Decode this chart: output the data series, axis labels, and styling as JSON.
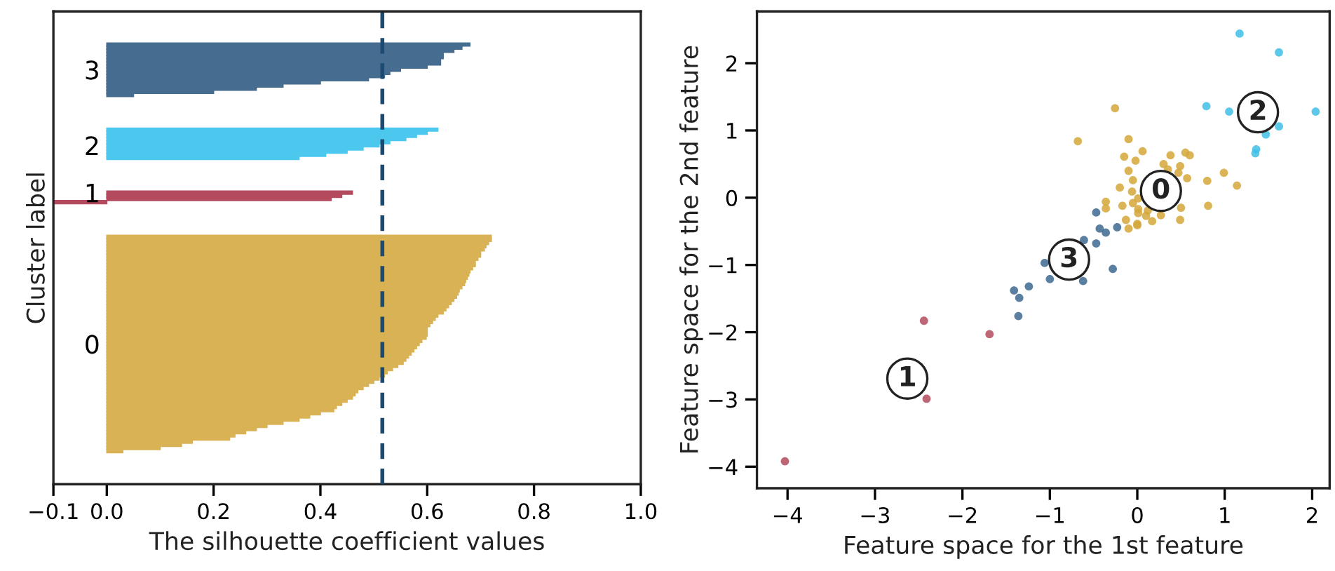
{
  "chart_data": [
    {
      "type": "bar",
      "orientation": "horizontal",
      "xlabel": "The silhouette coefficient values",
      "ylabel": "Cluster label",
      "categories": [
        null,
        null,
        null,
        null,
        null,
        null,
        null,
        null,
        null,
        null,
        null,
        null,
        null,
        null,
        null,
        null,
        null,
        null,
        "3",
        null,
        null,
        null,
        null,
        null,
        null,
        null,
        null,
        null,
        null,
        null,
        null,
        null,
        null,
        null,
        null,
        null,
        null,
        null,
        null,
        null,
        null,
        null,
        "2",
        null,
        null,
        null,
        null,
        null,
        null,
        null,
        null,
        null,
        null,
        null,
        null,
        null,
        null,
        "1",
        null,
        null,
        null,
        null,
        null,
        null,
        null,
        null,
        null,
        null,
        null,
        null,
        null,
        null,
        null,
        null,
        null,
        null,
        null,
        null,
        null,
        null,
        null,
        null,
        null,
        null,
        null,
        null,
        null,
        null,
        null,
        null,
        null,
        null,
        null,
        null,
        null,
        null,
        null,
        null,
        null,
        null,
        null,
        null,
        null,
        null,
        null,
        "0",
        null,
        null,
        null,
        null,
        null,
        null,
        null,
        null,
        null,
        null,
        null,
        null,
        null,
        null,
        null,
        null,
        null,
        null,
        null,
        null,
        null,
        null,
        null,
        null,
        null,
        null,
        null,
        null,
        null,
        null,
        null,
        null,
        null,
        null,
        null,
        null,
        null,
        null,
        null,
        null,
        null,
        null,
        null,
        null
      ],
      "values": [
        null,
        null,
        null,
        null,
        null,
        null,
        null,
        null,
        null,
        null,
        0.68,
        0.665,
        0.65,
        0.63,
        0.63,
        0.625,
        0.625,
        0.6,
        0.55,
        0.53,
        0.52,
        0.49,
        0.4,
        0.33,
        0.28,
        0.2,
        0.05,
        null,
        null,
        null,
        null,
        null,
        null,
        null,
        null,
        null,
        null,
        0.62,
        0.6,
        0.58,
        0.56,
        0.53,
        0.51,
        0.48,
        0.45,
        0.41,
        0.36,
        null,
        null,
        null,
        null,
        null,
        null,
        null,
        null,
        null,
        null,
        0.46,
        0.44,
        0.42,
        -0.1,
        null,
        null,
        null,
        null,
        null,
        null,
        null,
        null,
        null,
        null,
        0.72,
        0.72,
        0.715,
        0.71,
        0.707,
        0.7,
        0.7,
        0.695,
        0.69,
        0.69,
        0.685,
        0.68,
        0.678,
        0.675,
        0.672,
        0.67,
        0.665,
        0.66,
        0.658,
        0.655,
        0.65,
        0.645,
        0.64,
        0.635,
        0.63,
        0.62,
        0.615,
        0.61,
        0.605,
        0.6,
        0.6,
        0.6,
        0.598,
        0.59,
        0.585,
        0.58,
        0.575,
        0.57,
        0.565,
        0.56,
        0.555,
        0.545,
        0.535,
        0.525,
        0.52,
        0.51,
        0.5,
        0.49,
        0.48,
        0.47,
        0.465,
        0.46,
        0.45,
        0.44,
        0.43,
        0.425,
        0.4,
        0.38,
        0.36,
        0.33,
        0.3,
        0.28,
        0.26,
        0.24,
        0.23,
        0.16,
        0.14,
        0.1,
        0.03,
        null,
        null,
        null,
        null,
        null,
        null,
        null,
        null,
        null,
        null
      ],
      "colors": [
        null,
        null,
        null,
        null,
        null,
        null,
        null,
        null,
        null,
        null,
        "#466d90",
        "#466d90",
        "#466d90",
        "#466d90",
        "#466d90",
        "#466d90",
        "#466d90",
        "#466d90",
        "#466d90",
        "#466d90",
        "#466d90",
        "#466d90",
        "#466d90",
        "#466d90",
        "#466d90",
        "#466d90",
        "#466d90",
        null,
        null,
        null,
        null,
        null,
        null,
        null,
        null,
        null,
        null,
        "#4cc8ef",
        "#4cc8ef",
        "#4cc8ef",
        "#4cc8ef",
        "#4cc8ef",
        "#4cc8ef",
        "#4cc8ef",
        "#4cc8ef",
        "#4cc8ef",
        "#4cc8ef",
        null,
        null,
        null,
        null,
        null,
        null,
        null,
        null,
        null,
        null,
        "#b34a5e",
        "#b34a5e",
        "#b34a5e",
        "#b34a5e",
        null,
        null,
        null,
        null,
        null,
        null,
        null,
        null,
        null,
        null,
        "#d9b255",
        "#d9b255",
        "#d9b255",
        "#d9b255",
        "#d9b255",
        "#d9b255",
        "#d9b255",
        "#d9b255",
        "#d9b255",
        "#d9b255",
        "#d9b255",
        "#d9b255",
        "#d9b255",
        "#d9b255",
        "#d9b255",
        "#d9b255",
        "#d9b255",
        "#d9b255",
        "#d9b255",
        "#d9b255",
        "#d9b255",
        "#d9b255",
        "#d9b255",
        "#d9b255",
        "#d9b255",
        "#d9b255",
        "#d9b255",
        "#d9b255",
        "#d9b255",
        "#d9b255",
        "#d9b255",
        "#d9b255",
        "#d9b255",
        "#d9b255",
        "#d9b255",
        "#d9b255",
        "#d9b255",
        "#d9b255",
        "#d9b255",
        "#d9b255",
        "#d9b255",
        "#d9b255",
        "#d9b255",
        "#d9b255",
        "#d9b255",
        "#d9b255",
        "#d9b255",
        "#d9b255",
        "#d9b255",
        "#d9b255",
        "#d9b255",
        "#d9b255",
        "#d9b255",
        "#d9b255",
        "#d9b255",
        "#d9b255",
        "#d9b255",
        "#d9b255",
        "#d9b255",
        "#d9b255",
        "#d9b255",
        "#d9b255",
        "#d9b255",
        "#d9b255",
        "#d9b255",
        "#d9b255",
        "#d9b255",
        "#d9b255",
        "#d9b255",
        null,
        null,
        null,
        null,
        null,
        null,
        null,
        null,
        null,
        null
      ],
      "xlim": [
        -0.1,
        1.0
      ],
      "xticks": [
        {
          "value": -0.1,
          "label": "−0.1"
        },
        {
          "value": 0,
          "label": "0.0"
        },
        {
          "value": 0.2,
          "label": "0.2"
        },
        {
          "value": 0.4,
          "label": "0.4"
        },
        {
          "value": 0.6,
          "label": "0.6"
        },
        {
          "value": 0.8,
          "label": "0.8"
        },
        {
          "value": 1.0,
          "label": "1.0"
        }
      ],
      "ref_lines": [
        {
          "axis": "x",
          "value": 0.516,
          "color": "#1b4a72",
          "line_style": "dashed"
        }
      ],
      "grid": false
    },
    {
      "type": "scatter",
      "xlabel": "Feature space for the 1st feature",
      "ylabel": "Feature space for the 2nd feature",
      "marker": "circle",
      "series": [
        {
          "color": "#d4a73a",
          "x": [
            -0.255,
            -0.68,
            -0.1,
            -0.15,
            0.06,
            0.38,
            0.55,
            0.6,
            0.49,
            0.47,
            0.57,
            -0.1,
            -0.05,
            -0.06,
            0.8,
            0.99,
            1.14,
            0.81,
            0.5,
            -0.36,
            -0.36,
            -0.17,
            -0.05,
            0.01,
            0.12,
            0.1,
            0.01,
            0.27,
            -0.13,
            0.0,
            0.17,
            0.49,
            -0.1,
            0.01,
            0.0,
            0.3,
            0.35,
            -0.02,
            -0.2
          ],
          "values": [
            1.33,
            0.84,
            0.87,
            0.61,
            0.69,
            0.63,
            0.67,
            0.63,
            0.47,
            0.37,
            0.29,
            0.4,
            0.26,
            0.09,
            0.25,
            0.37,
            0.18,
            -0.12,
            -0.15,
            -0.06,
            -0.16,
            -0.12,
            -0.08,
            -0.17,
            -0.19,
            -0.27,
            -0.23,
            -0.26,
            -0.33,
            -0.39,
            -0.35,
            -0.33,
            -0.46,
            -0.01,
            -0.41,
            0.5,
            0.42,
            0.55,
            0.15
          ]
        },
        {
          "color": "#b34a5e",
          "x": [
            -2.44,
            -1.69,
            -2.41,
            -4.03
          ],
          "values": [
            -1.83,
            -2.03,
            -2.99,
            -3.92
          ]
        },
        {
          "color": "#3fbfe8",
          "x": [
            1.17,
            1.62,
            0.79,
            1.05,
            2.04,
            1.62,
            1.47,
            1.36,
            1.35
          ],
          "values": [
            2.44,
            2.16,
            1.36,
            1.28,
            1.28,
            1.06,
            0.94,
            0.72,
            0.66
          ]
        },
        {
          "color": "#3e6890",
          "x": [
            -0.47,
            -0.43,
            -0.36,
            -0.23,
            -0.61,
            -0.47,
            -1.06,
            -1.0,
            -0.62,
            -0.28,
            -1.41,
            -1.35,
            -1.24,
            -1.36
          ],
          "values": [
            -0.22,
            -0.46,
            -0.52,
            -0.44,
            -0.63,
            -0.68,
            -0.97,
            -1.21,
            -1.24,
            -1.06,
            -1.38,
            -1.49,
            -1.32,
            -1.76
          ]
        }
      ],
      "annotations": [
        {
          "text": "0",
          "x": 0.27,
          "y": 0.1
        },
        {
          "text": "1",
          "x": -2.63,
          "y": -2.69
        },
        {
          "text": "2",
          "x": 1.38,
          "y": 1.27
        },
        {
          "text": "3",
          "x": -0.78,
          "y": -0.92
        }
      ],
      "xlim": [
        -4.35,
        2.2
      ],
      "ylim": [
        -4.32,
        2.77
      ],
      "xticks": [
        {
          "value": -4,
          "label": "−4"
        },
        {
          "value": -3,
          "label": "−3"
        },
        {
          "value": -2,
          "label": "−2"
        },
        {
          "value": -1,
          "label": "−1"
        },
        0,
        1,
        2
      ],
      "yticks": [
        {
          "value": -4,
          "label": "−4"
        },
        {
          "value": -3,
          "label": "−3"
        },
        {
          "value": -2,
          "label": "−2"
        },
        {
          "value": -1,
          "label": "−1"
        },
        0,
        1,
        2
      ],
      "grid": false
    }
  ]
}
